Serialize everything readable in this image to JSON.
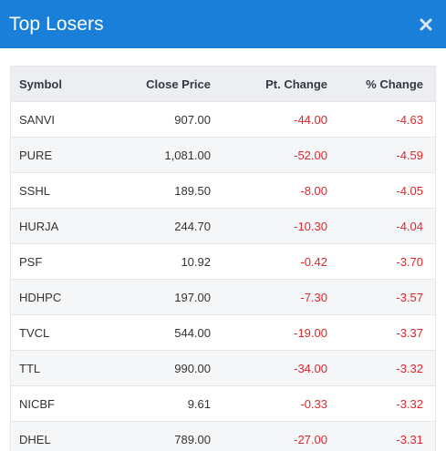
{
  "header": {
    "title": "Top Losers",
    "accent": "#1a7fd9",
    "close_icon": "close-icon"
  },
  "table": {
    "columns": [
      "Symbol",
      "Close Price",
      "Pt. Change",
      "% Change"
    ],
    "rows": [
      {
        "symbol": "SANVI",
        "close": "907.00",
        "pt": "-44.00",
        "pct": "-4.63"
      },
      {
        "symbol": "PURE",
        "close": "1,081.00",
        "pt": "-52.00",
        "pct": "-4.59"
      },
      {
        "symbol": "SSHL",
        "close": "189.50",
        "pt": "-8.00",
        "pct": "-4.05"
      },
      {
        "symbol": "HURJA",
        "close": "244.70",
        "pt": "-10.30",
        "pct": "-4.04"
      },
      {
        "symbol": "PSF",
        "close": "10.92",
        "pt": "-0.42",
        "pct": "-3.70"
      },
      {
        "symbol": "HDHPC",
        "close": "197.00",
        "pt": "-7.30",
        "pct": "-3.57"
      },
      {
        "symbol": "TVCL",
        "close": "544.00",
        "pt": "-19.00",
        "pct": "-3.37"
      },
      {
        "symbol": "TTL",
        "close": "990.00",
        "pt": "-34.00",
        "pct": "-3.32"
      },
      {
        "symbol": "NICBF",
        "close": "9.61",
        "pt": "-0.33",
        "pct": "-3.32"
      },
      {
        "symbol": "DHEL",
        "close": "789.00",
        "pt": "-27.00",
        "pct": "-3.31"
      }
    ],
    "negative_color": "#e0262b"
  }
}
